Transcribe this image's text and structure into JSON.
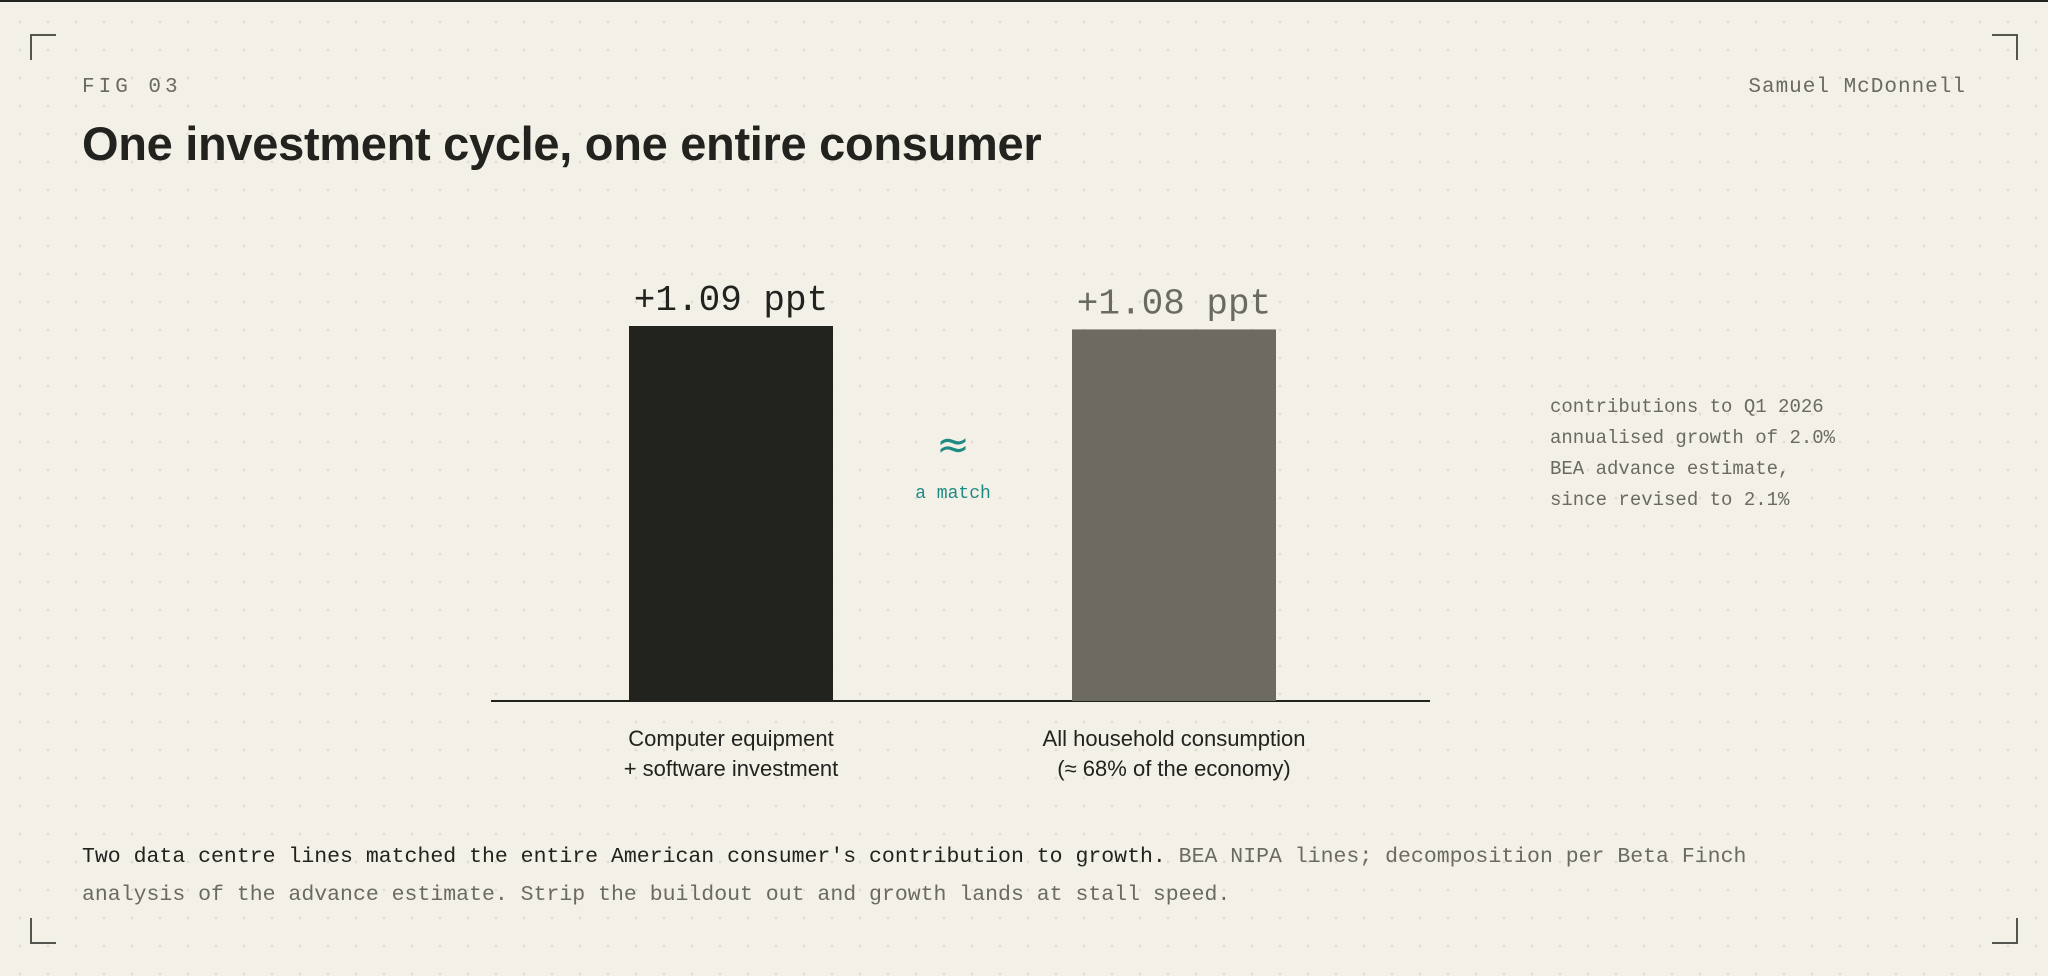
{
  "header": {
    "fig_label": "FIG 03",
    "author": "Samuel McDonnell",
    "title": "One investment cycle, one entire consumer"
  },
  "comparison": {
    "symbol": "≈",
    "note": "a match",
    "color": "#1f8a84"
  },
  "side_note": {
    "lines": [
      "contributions to Q1 2026",
      "annualised growth of 2.0%",
      "BEA advance estimate,",
      "since revised to 2.1%"
    ]
  },
  "caption": {
    "lead": "Two data centre lines matched the entire American consumer's contribution to growth.",
    "rest": " BEA NIPA lines; decomposition per Beta Finch analysis of the advance estimate. Strip the buildout out and growth lands at stall speed."
  },
  "chart_data": {
    "type": "bar",
    "categories": [
      [
        "Computer equipment",
        "+ software investment"
      ],
      [
        "All household consumption",
        "(≈ 68% of the economy)"
      ]
    ],
    "values": [
      1.09,
      1.08
    ],
    "value_labels": [
      "+1.09 ppt",
      "+1.08 ppt"
    ],
    "colors": [
      "#22221e",
      "#6d6b61"
    ],
    "label_colors": [
      "#22221e",
      "#6b6a62"
    ],
    "unit": "ppt",
    "ylim": [
      0,
      1.09
    ],
    "grid": false,
    "legend": "none"
  }
}
